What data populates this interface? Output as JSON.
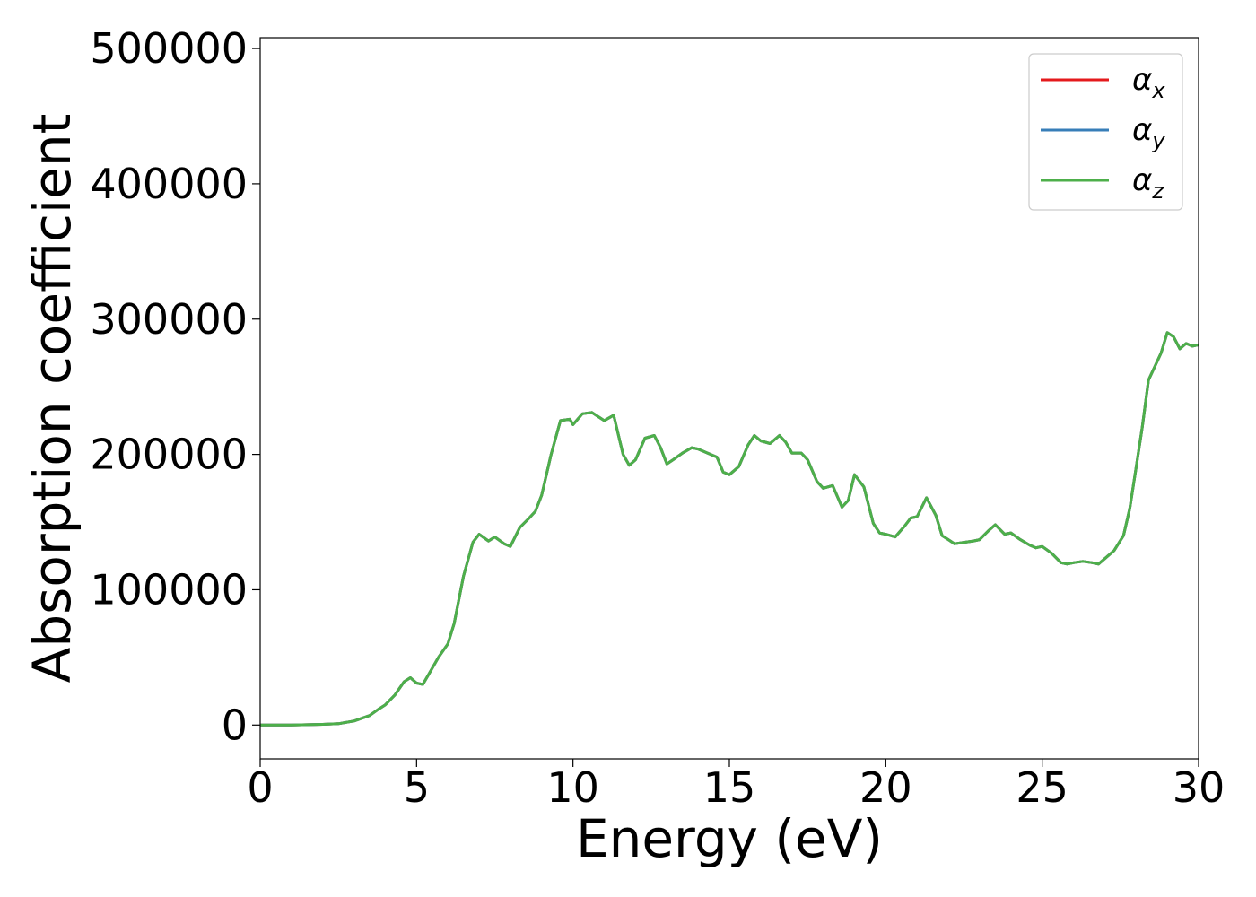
{
  "chart_data": {
    "type": "line",
    "title": "",
    "xlabel": "Energy (eV)",
    "ylabel": "Absorption coefficient",
    "xlim": [
      0,
      30
    ],
    "ylim": [
      -25000,
      508000
    ],
    "xticks": [
      0,
      5,
      10,
      15,
      20,
      25,
      30
    ],
    "xtick_labels": [
      "0",
      "5",
      "10",
      "15",
      "20",
      "25",
      "30"
    ],
    "yticks": [
      0,
      100000,
      200000,
      300000,
      400000,
      500000
    ],
    "ytick_labels": [
      "0",
      "100000",
      "200000",
      "300000",
      "400000",
      "500000"
    ],
    "grid": false,
    "legend_position": "top-right",
    "x": [
      0,
      1,
      2,
      2.5,
      3,
      3.5,
      3.8,
      4.0,
      4.3,
      4.6,
      4.8,
      5.0,
      5.2,
      5.4,
      5.7,
      6.0,
      6.2,
      6.5,
      6.8,
      7.0,
      7.3,
      7.5,
      7.8,
      8.0,
      8.3,
      8.6,
      8.8,
      9.0,
      9.3,
      9.6,
      9.9,
      10.0,
      10.3,
      10.6,
      10.8,
      11.0,
      11.3,
      11.6,
      11.8,
      12.0,
      12.3,
      12.6,
      12.8,
      13.0,
      13.2,
      13.5,
      13.8,
      14.0,
      14.3,
      14.6,
      14.8,
      15.0,
      15.3,
      15.6,
      15.8,
      16.0,
      16.3,
      16.6,
      16.8,
      17.0,
      17.3,
      17.5,
      17.8,
      18.0,
      18.3,
      18.6,
      18.8,
      19.0,
      19.3,
      19.6,
      19.8,
      20.0,
      20.3,
      20.6,
      20.8,
      21.0,
      21.3,
      21.6,
      21.8,
      22.0,
      22.2,
      22.5,
      22.8,
      23.0,
      23.3,
      23.5,
      23.8,
      24.0,
      24.3,
      24.6,
      24.8,
      25.0,
      25.3,
      25.6,
      25.8,
      26.0,
      26.3,
      26.6,
      26.8,
      27.0,
      27.3,
      27.6,
      27.8,
      28.0,
      28.2,
      28.4,
      28.6,
      28.8,
      29.0,
      29.2,
      29.4,
      29.6,
      29.8,
      30.0
    ],
    "series": [
      {
        "name": "α_x",
        "color": "#e41a1c",
        "values": [
          0,
          0,
          500,
          1000,
          3000,
          7000,
          12000,
          15000,
          22000,
          32000,
          35000,
          31000,
          30000,
          38000,
          50000,
          60000,
          75000,
          110000,
          135000,
          141000,
          136000,
          139000,
          134000,
          132000,
          146000,
          153000,
          158000,
          170000,
          200000,
          225000,
          226000,
          222000,
          230000,
          231000,
          228000,
          225000,
          229000,
          200000,
          192000,
          196000,
          212000,
          214000,
          205000,
          193000,
          196000,
          201000,
          205000,
          204000,
          201000,
          198000,
          187000,
          185000,
          191000,
          207000,
          214000,
          210000,
          208000,
          214000,
          209000,
          201000,
          201000,
          196000,
          180000,
          175000,
          177000,
          161000,
          166000,
          185000,
          176000,
          149000,
          142000,
          141000,
          139000,
          147000,
          153000,
          154000,
          168000,
          155000,
          140000,
          137000,
          134000,
          135000,
          136000,
          137000,
          144000,
          148000,
          141000,
          142000,
          137000,
          133000,
          131000,
          132000,
          127000,
          120000,
          119000,
          120000,
          121000,
          120000,
          119000,
          123000,
          129000,
          140000,
          160000,
          190000,
          220000,
          255000,
          265000,
          275000,
          290000,
          287000,
          278000,
          282000,
          280000,
          281000
        ]
      },
      {
        "name": "α_y",
        "color": "#377eb8",
        "values": [
          0,
          0,
          500,
          1000,
          3000,
          7000,
          12000,
          15000,
          22000,
          32000,
          35000,
          31000,
          30000,
          38000,
          50000,
          60000,
          75000,
          110000,
          135000,
          141000,
          136000,
          139000,
          134000,
          132000,
          146000,
          153000,
          158000,
          170000,
          200000,
          225000,
          226000,
          222000,
          230000,
          231000,
          228000,
          225000,
          229000,
          200000,
          192000,
          196000,
          212000,
          214000,
          205000,
          193000,
          196000,
          201000,
          205000,
          204000,
          201000,
          198000,
          187000,
          185000,
          191000,
          207000,
          214000,
          210000,
          208000,
          214000,
          209000,
          201000,
          201000,
          196000,
          180000,
          175000,
          177000,
          161000,
          166000,
          185000,
          176000,
          149000,
          142000,
          141000,
          139000,
          147000,
          153000,
          154000,
          168000,
          155000,
          140000,
          137000,
          134000,
          135000,
          136000,
          137000,
          144000,
          148000,
          141000,
          142000,
          137000,
          133000,
          131000,
          132000,
          127000,
          120000,
          119000,
          120000,
          121000,
          120000,
          119000,
          123000,
          129000,
          140000,
          160000,
          190000,
          220000,
          255000,
          265000,
          275000,
          290000,
          287000,
          278000,
          282000,
          280000,
          281000
        ]
      },
      {
        "name": "α_z",
        "color": "#4daf4a",
        "values": [
          0,
          0,
          500,
          1000,
          3000,
          7000,
          12000,
          15000,
          22000,
          32000,
          35000,
          31000,
          30000,
          38000,
          50000,
          60000,
          75000,
          110000,
          135000,
          141000,
          136000,
          139000,
          134000,
          132000,
          146000,
          153000,
          158000,
          170000,
          200000,
          225000,
          226000,
          222000,
          230000,
          231000,
          228000,
          225000,
          229000,
          200000,
          192000,
          196000,
          212000,
          214000,
          205000,
          193000,
          196000,
          201000,
          205000,
          204000,
          201000,
          198000,
          187000,
          185000,
          191000,
          207000,
          214000,
          210000,
          208000,
          214000,
          209000,
          201000,
          201000,
          196000,
          180000,
          175000,
          177000,
          161000,
          166000,
          185000,
          176000,
          149000,
          142000,
          141000,
          139000,
          147000,
          153000,
          154000,
          168000,
          155000,
          140000,
          137000,
          134000,
          135000,
          136000,
          137000,
          144000,
          148000,
          141000,
          142000,
          137000,
          133000,
          131000,
          132000,
          127000,
          120000,
          119000,
          120000,
          121000,
          120000,
          119000,
          123000,
          129000,
          140000,
          160000,
          190000,
          220000,
          255000,
          265000,
          275000,
          290000,
          287000,
          278000,
          282000,
          280000,
          281000
        ]
      }
    ],
    "legend": [
      {
        "symbol": "α",
        "subscript": "x"
      },
      {
        "symbol": "α",
        "subscript": "y"
      },
      {
        "symbol": "α",
        "subscript": "z"
      }
    ]
  }
}
